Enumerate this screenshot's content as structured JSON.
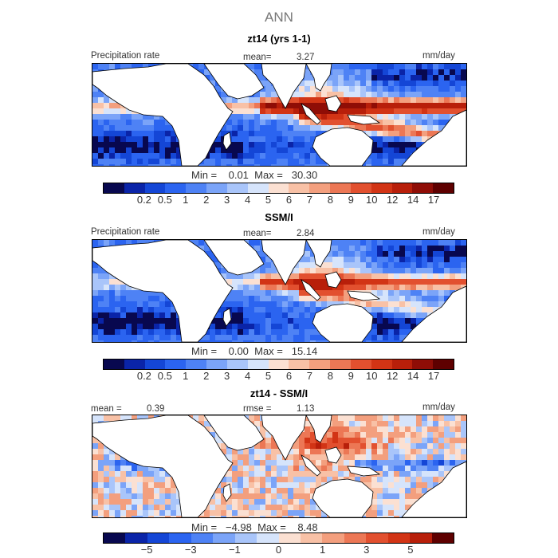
{
  "figure": {
    "title": "ANN"
  },
  "panels": [
    {
      "subtitle": "zt14 (yrs 1-1)",
      "left_label": "Precipitation rate",
      "center_label": "mean=",
      "center_value": "3.27",
      "units": "mm/day",
      "minmax": "Min =    0.01  Max =   30.30",
      "kind": "model"
    },
    {
      "subtitle": "SSM/I",
      "left_label": "Precipitation rate",
      "center_label": "mean=",
      "center_value": "2.84",
      "units": "mm/day",
      "minmax": "Min =    0.00  Max =   15.14",
      "kind": "obs"
    },
    {
      "subtitle": "zt14 - SSM/I",
      "left_label": "mean =",
      "left_value": "0.39",
      "center_label": "rmse =",
      "center_value": "1.13",
      "units": "mm/day",
      "minmax": "Min =   −4.98  Max =    8.48",
      "kind": "diff"
    }
  ],
  "colorbars": {
    "abs_colors": [
      "#08084f",
      "#0a24a8",
      "#1446d6",
      "#2b64f0",
      "#4e82f5",
      "#7ba4f8",
      "#a9c5fa",
      "#d6e4fb",
      "#fbe0d2",
      "#f8c1a6",
      "#f39f7e",
      "#ec7755",
      "#e2502f",
      "#d23415",
      "#b81f0a",
      "#8f0d06",
      "#5e0000"
    ],
    "abs_ticks": [
      "0.2",
      "0.5",
      "1",
      "2",
      "3",
      "4",
      "5",
      "6",
      "7",
      "8",
      "9",
      "10",
      "12",
      "14",
      "17"
    ],
    "diff_colors": [
      "#08084f",
      "#0a24a8",
      "#1446d6",
      "#2b64f0",
      "#4e82f5",
      "#7ba4f8",
      "#a9c5fa",
      "#d6e4fb",
      "#fbe0d2",
      "#f8c1a6",
      "#f39f7e",
      "#ec7755",
      "#e2502f",
      "#d23415",
      "#b81f0a",
      "#5e0000"
    ],
    "diff_ticks": [
      "−5",
      "−3",
      "−1",
      "0",
      "1",
      "3",
      "5"
    ]
  }
}
